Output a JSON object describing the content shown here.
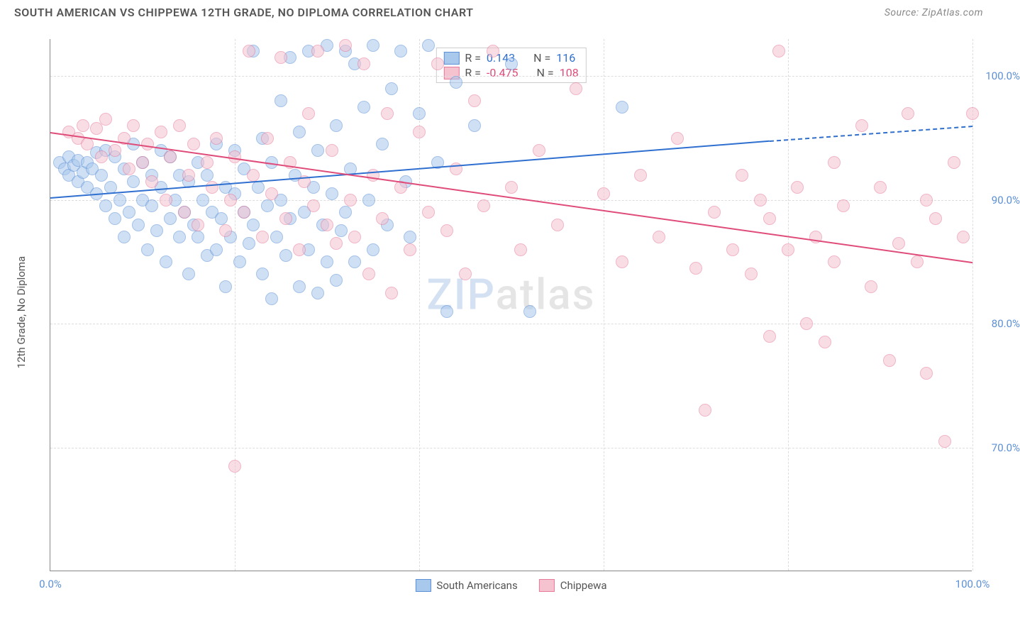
{
  "title": "SOUTH AMERICAN VS CHIPPEWA 12TH GRADE, NO DIPLOMA CORRELATION CHART",
  "source": "Source: ZipAtlas.com",
  "y_axis_title": "12th Grade, No Diploma",
  "watermark_zip": "ZIP",
  "watermark_rest": "atlas",
  "chart": {
    "type": "scatter",
    "xlim": [
      0,
      100
    ],
    "ylim": [
      60,
      103
    ],
    "background_color": "#ffffff",
    "grid_color": "#dddddd",
    "axis_color": "#888888",
    "text_color": "#555555",
    "tick_color": "#5b8fd6",
    "point_radius": 9,
    "point_opacity": 0.55,
    "yticks": [
      {
        "value": 70,
        "label": "70.0%"
      },
      {
        "value": 80,
        "label": "80.0%"
      },
      {
        "value": 90,
        "label": "90.0%"
      },
      {
        "value": 100,
        "label": "100.0%"
      }
    ],
    "xticks": [
      {
        "value": 0,
        "label": "0.0%"
      },
      {
        "value": 100,
        "label": "100.0%"
      }
    ],
    "x_gridlines_at": [
      20,
      40,
      60,
      80,
      100
    ],
    "series": [
      {
        "name": "South Americans",
        "color_fill": "#a8c8ec",
        "color_stroke": "#5b8fd6",
        "trend": {
          "x1": 0,
          "y1": 90.2,
          "x2": 78,
          "y2": 94.8,
          "dash_x2": 100,
          "dash_y2": 96.0,
          "color": "#2f6fd0",
          "width": 2
        },
        "stats": {
          "R": "0.143",
          "N": "116"
        },
        "points": [
          [
            1,
            93
          ],
          [
            1.5,
            92.5
          ],
          [
            2,
            93.5
          ],
          [
            2,
            92
          ],
          [
            2.5,
            92.8
          ],
          [
            3,
            93.2
          ],
          [
            3,
            91.5
          ],
          [
            3.5,
            92.2
          ],
          [
            4,
            93
          ],
          [
            4,
            91
          ],
          [
            4.5,
            92.5
          ],
          [
            5,
            93.8
          ],
          [
            5,
            90.5
          ],
          [
            5.5,
            92
          ],
          [
            6,
            94
          ],
          [
            6,
            89.5
          ],
          [
            6.5,
            91
          ],
          [
            7,
            93.5
          ],
          [
            7,
            88.5
          ],
          [
            7.5,
            90
          ],
          [
            8,
            92.5
          ],
          [
            8,
            87
          ],
          [
            8.5,
            89
          ],
          [
            9,
            91.5
          ],
          [
            9,
            94.5
          ],
          [
            9.5,
            88
          ],
          [
            10,
            90
          ],
          [
            10,
            93
          ],
          [
            10.5,
            86
          ],
          [
            11,
            89.5
          ],
          [
            11,
            92
          ],
          [
            11.5,
            87.5
          ],
          [
            12,
            91
          ],
          [
            12,
            94
          ],
          [
            12.5,
            85
          ],
          [
            13,
            88.5
          ],
          [
            13,
            93.5
          ],
          [
            13.5,
            90
          ],
          [
            14,
            87
          ],
          [
            14,
            92
          ],
          [
            14.5,
            89
          ],
          [
            15,
            91.5
          ],
          [
            15,
            84
          ],
          [
            15.5,
            88
          ],
          [
            16,
            93
          ],
          [
            16,
            87
          ],
          [
            16.5,
            90
          ],
          [
            17,
            85.5
          ],
          [
            17,
            92
          ],
          [
            17.5,
            89
          ],
          [
            18,
            94.5
          ],
          [
            18,
            86
          ],
          [
            18.5,
            88.5
          ],
          [
            19,
            91
          ],
          [
            19,
            83
          ],
          [
            19.5,
            87
          ],
          [
            20,
            90.5
          ],
          [
            20,
            94
          ],
          [
            20.5,
            85
          ],
          [
            21,
            89
          ],
          [
            21,
            92.5
          ],
          [
            21.5,
            86.5
          ],
          [
            22,
            88
          ],
          [
            22,
            102
          ],
          [
            22.5,
            91
          ],
          [
            23,
            95
          ],
          [
            23,
            84
          ],
          [
            23.5,
            89.5
          ],
          [
            24,
            82
          ],
          [
            24,
            93
          ],
          [
            24.5,
            87
          ],
          [
            25,
            90
          ],
          [
            25,
            98
          ],
          [
            25.5,
            85.5
          ],
          [
            26,
            88.5
          ],
          [
            26,
            101.5
          ],
          [
            26.5,
            92
          ],
          [
            27,
            83
          ],
          [
            27,
            95.5
          ],
          [
            27.5,
            89
          ],
          [
            28,
            86
          ],
          [
            28,
            102
          ],
          [
            28.5,
            91
          ],
          [
            29,
            82.5
          ],
          [
            29,
            94
          ],
          [
            29.5,
            88
          ],
          [
            30,
            85
          ],
          [
            30,
            102.5
          ],
          [
            30.5,
            90.5
          ],
          [
            31,
            83.5
          ],
          [
            31,
            96
          ],
          [
            31.5,
            87.5
          ],
          [
            32,
            102
          ],
          [
            32,
            89
          ],
          [
            32.5,
            92.5
          ],
          [
            33,
            101
          ],
          [
            33,
            85
          ],
          [
            34,
            97.5
          ],
          [
            34.5,
            90
          ],
          [
            35,
            86
          ],
          [
            35,
            102.5
          ],
          [
            36,
            94.5
          ],
          [
            36.5,
            88
          ],
          [
            37,
            99
          ],
          [
            38,
            102
          ],
          [
            38.5,
            91.5
          ],
          [
            39,
            87
          ],
          [
            40,
            97
          ],
          [
            41,
            102.5
          ],
          [
            42,
            93
          ],
          [
            43,
            81
          ],
          [
            44,
            99.5
          ],
          [
            46,
            96
          ],
          [
            50,
            101
          ],
          [
            52,
            81
          ],
          [
            62,
            97.5
          ]
        ]
      },
      {
        "name": "Chippewa",
        "color_fill": "#f5c2d0",
        "color_stroke": "#e57a9a",
        "trend": {
          "x1": 0,
          "y1": 95.5,
          "x2": 100,
          "y2": 85.0,
          "color": "#e04c7a",
          "width": 2
        },
        "stats": {
          "R": "-0.475",
          "N": "108"
        },
        "points": [
          [
            2,
            95.5
          ],
          [
            3,
            95
          ],
          [
            3.5,
            96
          ],
          [
            4,
            94.5
          ],
          [
            5,
            95.8
          ],
          [
            5.5,
            93.5
          ],
          [
            6,
            96.5
          ],
          [
            7,
            94
          ],
          [
            8,
            95
          ],
          [
            8.5,
            92.5
          ],
          [
            9,
            96
          ],
          [
            10,
            93
          ],
          [
            10.5,
            94.5
          ],
          [
            11,
            91.5
          ],
          [
            12,
            95.5
          ],
          [
            12.5,
            90
          ],
          [
            13,
            93.5
          ],
          [
            14,
            96
          ],
          [
            14.5,
            89
          ],
          [
            15,
            92
          ],
          [
            15.5,
            94.5
          ],
          [
            16,
            88
          ],
          [
            17,
            93
          ],
          [
            17.5,
            91
          ],
          [
            18,
            95
          ],
          [
            19,
            87.5
          ],
          [
            19.5,
            90
          ],
          [
            20,
            93.5
          ],
          [
            20,
            68.5
          ],
          [
            21,
            89
          ],
          [
            21.5,
            102
          ],
          [
            22,
            92
          ],
          [
            23,
            87
          ],
          [
            23.5,
            95
          ],
          [
            24,
            90.5
          ],
          [
            25,
            101.5
          ],
          [
            25.5,
            88.5
          ],
          [
            26,
            93
          ],
          [
            27,
            86
          ],
          [
            27.5,
            91.5
          ],
          [
            28,
            97
          ],
          [
            28.5,
            89.5
          ],
          [
            29,
            102
          ],
          [
            30,
            88
          ],
          [
            30.5,
            94
          ],
          [
            31,
            86.5
          ],
          [
            32,
            102.5
          ],
          [
            32.5,
            90
          ],
          [
            33,
            87
          ],
          [
            34,
            101
          ],
          [
            34.5,
            84
          ],
          [
            35,
            92
          ],
          [
            36,
            88.5
          ],
          [
            36.5,
            97
          ],
          [
            37,
            82.5
          ],
          [
            38,
            91
          ],
          [
            39,
            86
          ],
          [
            40,
            95.5
          ],
          [
            41,
            89
          ],
          [
            42,
            101
          ],
          [
            43,
            87.5
          ],
          [
            44,
            92.5
          ],
          [
            45,
            84
          ],
          [
            46,
            98
          ],
          [
            47,
            89.5
          ],
          [
            48,
            102
          ],
          [
            50,
            91
          ],
          [
            51,
            86
          ],
          [
            53,
            94
          ],
          [
            55,
            88
          ],
          [
            57,
            99
          ],
          [
            60,
            90.5
          ],
          [
            62,
            85
          ],
          [
            64,
            92
          ],
          [
            66,
            87
          ],
          [
            68,
            95
          ],
          [
            70,
            84.5
          ],
          [
            71,
            73
          ],
          [
            72,
            89
          ],
          [
            74,
            86
          ],
          [
            75,
            92
          ],
          [
            76,
            84
          ],
          [
            77,
            90
          ],
          [
            78,
            79
          ],
          [
            78,
            88.5
          ],
          [
            79,
            102
          ],
          [
            80,
            86
          ],
          [
            81,
            91
          ],
          [
            82,
            80
          ],
          [
            83,
            87
          ],
          [
            84,
            78.5
          ],
          [
            85,
            93
          ],
          [
            85,
            85
          ],
          [
            86,
            89.5
          ],
          [
            88,
            96
          ],
          [
            89,
            83
          ],
          [
            90,
            91
          ],
          [
            91,
            77
          ],
          [
            92,
            86.5
          ],
          [
            93,
            97
          ],
          [
            94,
            85
          ],
          [
            95,
            90
          ],
          [
            95,
            76
          ],
          [
            96,
            88.5
          ],
          [
            97,
            70.5
          ],
          [
            98,
            93
          ],
          [
            99,
            87
          ],
          [
            100,
            97
          ]
        ]
      }
    ]
  },
  "stats_legend": {
    "R_label": "R =",
    "N_label": "N ="
  },
  "bottom_legend_labels": [
    "South Americans",
    "Chippewa"
  ]
}
